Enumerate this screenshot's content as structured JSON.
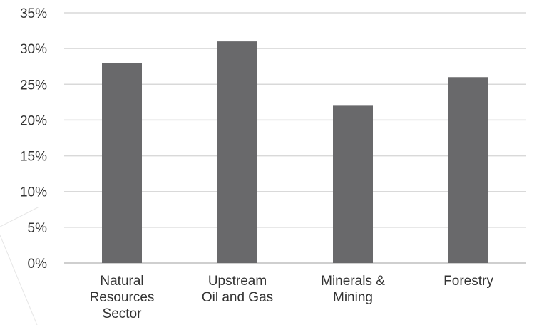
{
  "chart_data": {
    "type": "bar",
    "title": "",
    "xlabel": "",
    "ylabel": "",
    "categories": [
      [
        "Natural",
        "Resources",
        "Sector"
      ],
      [
        "Upstream",
        "Oil and Gas"
      ],
      [
        "Minerals &",
        "Mining"
      ],
      [
        "Forestry"
      ]
    ],
    "values": [
      28,
      31,
      22,
      26
    ],
    "ylim": [
      0,
      35
    ],
    "yticks": [
      0,
      5,
      10,
      15,
      20,
      25,
      30,
      35
    ],
    "ytick_labels": [
      "0%",
      "5%",
      "10%",
      "15%",
      "20%",
      "25%",
      "30%",
      "35%"
    ],
    "grid": true,
    "legend": "none",
    "colors": {
      "bar": "#69696b",
      "grid": "#d9d9d9",
      "text": "#333333"
    }
  }
}
